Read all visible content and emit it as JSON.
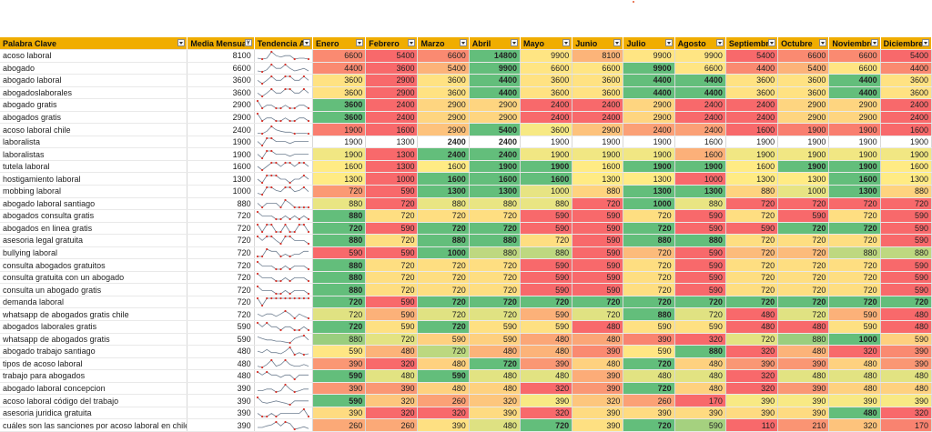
{
  "headers": [
    "Palabra Clave",
    "Media Mensual",
    "Tendencia Ac",
    "Enero",
    "Febrero",
    "Marzo",
    "Abril",
    "Mayo",
    "Junio",
    "Julio",
    "Agosto",
    "Septiembre",
    "Octubre",
    "Noviembre",
    "Diciembre"
  ],
  "rows": [
    {
      "kw": "acoso laboral",
      "avg": "8100",
      "m": [
        "6600",
        "5400",
        "6600",
        "14800",
        "9900",
        "8100",
        "9900",
        "9900",
        "5400",
        "6600",
        "6600",
        "5400"
      ]
    },
    {
      "kw": "abogado",
      "avg": "6600",
      "m": [
        "4400",
        "3600",
        "5400",
        "9900",
        "6600",
        "6600",
        "9900",
        "6600",
        "4400",
        "5400",
        "6600",
        "4400"
      ]
    },
    {
      "kw": "abogado laboral",
      "avg": "3600",
      "m": [
        "3600",
        "2900",
        "3600",
        "4400",
        "3600",
        "3600",
        "4400",
        "4400",
        "3600",
        "3600",
        "4400",
        "3600"
      ]
    },
    {
      "kw": "abogadoslaborales",
      "avg": "3600",
      "m": [
        "3600",
        "2900",
        "3600",
        "4400",
        "3600",
        "3600",
        "4400",
        "4400",
        "3600",
        "3600",
        "4400",
        "3600"
      ]
    },
    {
      "kw": "abogado gratis",
      "avg": "2900",
      "m": [
        "3600",
        "2400",
        "2900",
        "2900",
        "2400",
        "2400",
        "2900",
        "2400",
        "2400",
        "2900",
        "2900",
        "2400"
      ]
    },
    {
      "kw": "abogados gratis",
      "avg": "2900",
      "m": [
        "3600",
        "2400",
        "2900",
        "2900",
        "2400",
        "2400",
        "2900",
        "2400",
        "2400",
        "2900",
        "2900",
        "2400"
      ]
    },
    {
      "kw": "acoso laboral chile",
      "avg": "2400",
      "m": [
        "1900",
        "1600",
        "2900",
        "5400",
        "3600",
        "2900",
        "2400",
        "2400",
        "1600",
        "1900",
        "1900",
        "1600"
      ]
    },
    {
      "kw": "laboralista",
      "avg": "1900",
      "m": [
        "1900",
        "1300",
        "2400",
        "2400",
        "1900",
        "1900",
        "1900",
        "1600",
        "1900",
        "1900",
        "1900",
        "1900"
      ]
    },
    {
      "kw": "laboralistas",
      "avg": "1900",
      "m": [
        "1900",
        "1300",
        "2400",
        "2400",
        "1900",
        "1900",
        "1900",
        "1600",
        "1900",
        "1900",
        "1900",
        "1900"
      ]
    },
    {
      "kw": "tutela laboral",
      "avg": "1600",
      "m": [
        "1600",
        "1300",
        "1600",
        "1900",
        "1900",
        "1600",
        "1900",
        "1900",
        "1600",
        "1900",
        "1900",
        "1600"
      ]
    },
    {
      "kw": "hostigamiento laboral",
      "avg": "1300",
      "m": [
        "1300",
        "1000",
        "1600",
        "1600",
        "1600",
        "1300",
        "1300",
        "1000",
        "1300",
        "1300",
        "1600",
        "1300"
      ]
    },
    {
      "kw": "mobbing laboral",
      "avg": "1000",
      "m": [
        "720",
        "590",
        "1300",
        "1300",
        "1000",
        "880",
        "1300",
        "1300",
        "880",
        "1000",
        "1300",
        "880"
      ]
    },
    {
      "kw": "abogado laboral santiago",
      "avg": "880",
      "m": [
        "880",
        "720",
        "880",
        "880",
        "880",
        "720",
        "1000",
        "880",
        "720",
        "720",
        "720",
        "720"
      ]
    },
    {
      "kw": "abogados consulta gratis",
      "avg": "720",
      "m": [
        "880",
        "720",
        "720",
        "720",
        "590",
        "590",
        "720",
        "590",
        "720",
        "590",
        "720",
        "590"
      ]
    },
    {
      "kw": "abogados en linea gratis",
      "avg": "720",
      "m": [
        "720",
        "590",
        "720",
        "720",
        "590",
        "590",
        "720",
        "590",
        "590",
        "720",
        "720",
        "590"
      ]
    },
    {
      "kw": "asesoria legal gratuita",
      "avg": "720",
      "m": [
        "880",
        "720",
        "880",
        "880",
        "720",
        "590",
        "880",
        "880",
        "720",
        "720",
        "720",
        "590"
      ]
    },
    {
      "kw": "bullying laboral",
      "avg": "720",
      "m": [
        "590",
        "590",
        "1000",
        "880",
        "880",
        "590",
        "720",
        "590",
        "720",
        "720",
        "880",
        "880"
      ]
    },
    {
      "kw": "consulta abogados gratuitos",
      "avg": "720",
      "m": [
        "880",
        "720",
        "720",
        "720",
        "590",
        "590",
        "720",
        "590",
        "720",
        "720",
        "720",
        "590"
      ]
    },
    {
      "kw": "consulta gratuita con un abogado",
      "avg": "720",
      "m": [
        "880",
        "720",
        "720",
        "720",
        "590",
        "590",
        "720",
        "590",
        "720",
        "720",
        "720",
        "590"
      ]
    },
    {
      "kw": "consulta un abogado gratis",
      "avg": "720",
      "m": [
        "880",
        "720",
        "720",
        "720",
        "590",
        "590",
        "720",
        "590",
        "720",
        "720",
        "720",
        "590"
      ]
    },
    {
      "kw": "demanda laboral",
      "avg": "720",
      "m": [
        "720",
        "590",
        "720",
        "720",
        "720",
        "720",
        "720",
        "720",
        "720",
        "720",
        "720",
        "720"
      ]
    },
    {
      "kw": "whatsapp de abogados gratis chile",
      "avg": "720",
      "m": [
        "720",
        "590",
        "720",
        "720",
        "590",
        "720",
        "880",
        "720",
        "480",
        "720",
        "590",
        "480"
      ]
    },
    {
      "kw": "abogados laborales gratis",
      "avg": "590",
      "m": [
        "720",
        "590",
        "720",
        "590",
        "590",
        "480",
        "590",
        "590",
        "480",
        "480",
        "590",
        "480"
      ]
    },
    {
      "kw": "whatsapp de abogados gratis",
      "avg": "590",
      "m": [
        "880",
        "720",
        "590",
        "590",
        "480",
        "480",
        "390",
        "320",
        "720",
        "880",
        "1000",
        "590"
      ]
    },
    {
      "kw": "abogado trabajo santiago",
      "avg": "480",
      "m": [
        "590",
        "480",
        "720",
        "480",
        "480",
        "390",
        "590",
        "880",
        "320",
        "480",
        "320",
        "390"
      ]
    },
    {
      "kw": "tipos de acoso laboral",
      "avg": "480",
      "m": [
        "390",
        "320",
        "480",
        "720",
        "390",
        "480",
        "720",
        "480",
        "390",
        "390",
        "480",
        "390"
      ]
    },
    {
      "kw": "trabajo para abogados",
      "avg": "480",
      "m": [
        "590",
        "480",
        "590",
        "480",
        "480",
        "390",
        "480",
        "480",
        "320",
        "480",
        "480",
        "480"
      ]
    },
    {
      "kw": "abogado laboral concepcion",
      "avg": "390",
      "m": [
        "390",
        "390",
        "480",
        "480",
        "320",
        "390",
        "720",
        "480",
        "320",
        "390",
        "480",
        "480"
      ]
    },
    {
      "kw": "acoso laboral código del trabajo",
      "avg": "390",
      "m": [
        "590",
        "320",
        "260",
        "320",
        "390",
        "320",
        "260",
        "170",
        "390",
        "390",
        "390",
        "390"
      ]
    },
    {
      "kw": "asesoria juridica gratuita",
      "avg": "390",
      "m": [
        "390",
        "320",
        "320",
        "390",
        "320",
        "390",
        "390",
        "390",
        "390",
        "390",
        "480",
        "320"
      ]
    },
    {
      "kw": "cuáles son las sanciones por acoso laboral en chile",
      "avg": "390",
      "m": [
        "260",
        "260",
        "390",
        "480",
        "720",
        "390",
        "720",
        "590",
        "110",
        "210",
        "320",
        "170"
      ]
    }
  ],
  "white_row_index": 7,
  "colors": {
    "header": "#f0ad00",
    "low": "#f8696b",
    "mid": "#ffeb84",
    "high": "#63be7b",
    "marker": "#d9342b",
    "sparkline": "#6f7f91"
  }
}
